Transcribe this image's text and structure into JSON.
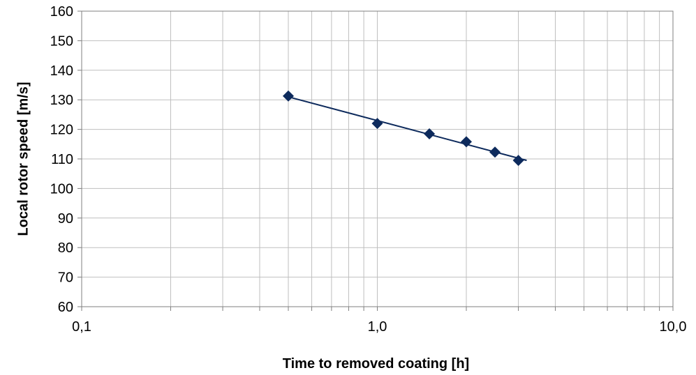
{
  "chart_data": {
    "type": "scatter",
    "title": "",
    "xlabel": "Time to removed coating [h]",
    "ylabel": "Local rotor speed [m/s]",
    "x_scale": "log",
    "xlim": [
      0.1,
      10.0
    ],
    "ylim": [
      60,
      160
    ],
    "x_ticks": [
      {
        "value": 0.1,
        "label": "0,1"
      },
      {
        "value": 1.0,
        "label": "1,0"
      },
      {
        "value": 10.0,
        "label": "10,0"
      }
    ],
    "y_ticks": [
      {
        "value": 60,
        "label": "60"
      },
      {
        "value": 70,
        "label": "70"
      },
      {
        "value": 80,
        "label": "80"
      },
      {
        "value": 90,
        "label": "90"
      },
      {
        "value": 100,
        "label": "100"
      },
      {
        "value": 110,
        "label": "110"
      },
      {
        "value": 120,
        "label": "120"
      },
      {
        "value": 130,
        "label": "130"
      },
      {
        "value": 140,
        "label": "140"
      },
      {
        "value": 150,
        "label": "150"
      },
      {
        "value": 160,
        "label": "160"
      }
    ],
    "grid": true,
    "legend": "none",
    "series": [
      {
        "x": [
          0.5,
          1.0,
          1.5,
          2.0,
          2.5,
          3.0
        ],
        "y": [
          131.3,
          122.0,
          118.5,
          115.8,
          112.3,
          109.5
        ],
        "marker": "diamond",
        "color": "#0d2a5c"
      }
    ],
    "trendline": {
      "type": "logarithmic",
      "color": "#0d2a5c",
      "x_range": [
        0.5,
        3.2
      ],
      "points": [
        {
          "x": 0.5,
          "y": 131.0
        },
        {
          "x": 3.2,
          "y": 109.5
        }
      ]
    }
  }
}
